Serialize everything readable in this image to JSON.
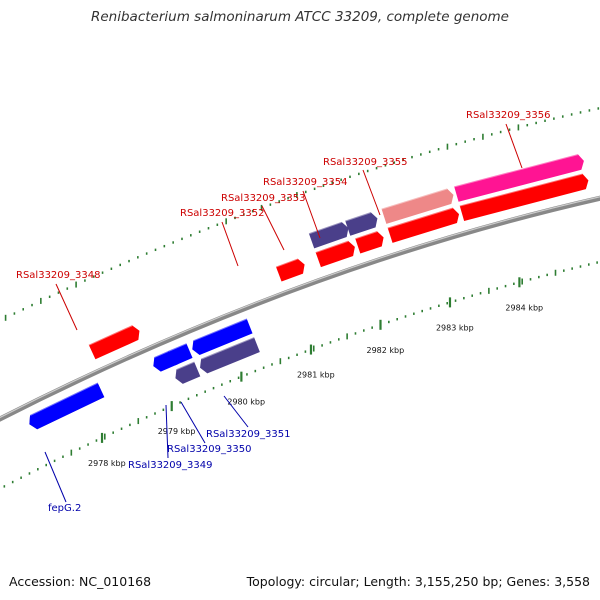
{
  "title": "Renibacterium salmoninarum ATCC 33209, complete genome",
  "accession": "Accession: NC_010168",
  "summary": "Topology: circular; Length: 3,155,250 bp; Genes: 3,558",
  "colors": {
    "forward_gene": "#ff0000",
    "forward_label": "#cc0000",
    "reverse_gene": "#0000ff",
    "reverse_label": "#0000aa",
    "operon_gene": "#4a3f8a",
    "pseudo_gene": "#ee8888",
    "rrna_gene": "#ff1493",
    "backbone": "#888888",
    "tick": "#2e7d32"
  },
  "scale": {
    "unit": "kbp",
    "ticks": [
      {
        "value": 2978,
        "label": "2978 kbp"
      },
      {
        "value": 2979,
        "label": "2979 kbp"
      },
      {
        "value": 2980,
        "label": "2980 kbp"
      },
      {
        "value": 2981,
        "label": "2981 kbp"
      },
      {
        "value": 2982,
        "label": "2982 kbp"
      },
      {
        "value": 2983,
        "label": "2983 kbp"
      },
      {
        "value": 2984,
        "label": "2984 kbp"
      }
    ]
  },
  "genes": [
    {
      "name": "fepG.2",
      "strand": "reverse",
      "kind": "operon",
      "start_kbp": 2977.3,
      "end_kbp": 2978.25
    },
    {
      "name": "fepG.2 (upper)",
      "strand": "reverse",
      "kind": "reverse",
      "start_kbp": 2977.3,
      "end_kbp": 2978.25
    },
    {
      "name": "RSal33209_3348",
      "strand": "forward",
      "kind": "forward",
      "start_kbp": 2978.35,
      "end_kbp": 2978.95
    },
    {
      "name": "RSal33209_3349",
      "strand": "reverse",
      "kind": "reverse",
      "start_kbp": 2979.05,
      "end_kbp": 2979.3
    },
    {
      "name": "RSal33209_3350",
      "strand": "reverse",
      "kind": "reverse",
      "start_kbp": 2979.25,
      "end_kbp": 2979.5
    },
    {
      "name": "RSal33209_3350 (lower)",
      "strand": "reverse",
      "kind": "operon",
      "start_kbp": 2979.25,
      "end_kbp": 2979.5
    },
    {
      "name": "RSal33209_3351",
      "strand": "reverse",
      "kind": "reverse",
      "start_kbp": 2979.6,
      "end_kbp": 2980.35
    },
    {
      "name": "RSal33209_3351 (lower)",
      "strand": "reverse",
      "kind": "operon",
      "start_kbp": 2979.6,
      "end_kbp": 2980.35
    },
    {
      "name": "RSal33209_3352",
      "strand": "forward",
      "kind": "forward",
      "start_kbp": 2980.95,
      "end_kbp": 2981.25
    },
    {
      "name": "RSal33209_3353",
      "strand": "forward",
      "kind": "forward",
      "start_kbp": 2981.5,
      "end_kbp": 2981.95
    },
    {
      "name": "RSal33209_3353 (upper)",
      "strand": "forward",
      "kind": "operon",
      "start_kbp": 2981.5,
      "end_kbp": 2981.95
    },
    {
      "name": "RSal33209_3354",
      "strand": "forward",
      "kind": "forward",
      "start_kbp": 2982.05,
      "end_kbp": 2982.35
    },
    {
      "name": "RSal33209_3354 (upper)",
      "strand": "forward",
      "kind": "operon",
      "start_kbp": 2982.0,
      "end_kbp": 2982.35
    },
    {
      "name": "RSal33209_3355",
      "strand": "forward",
      "kind": "forward",
      "start_kbp": 2982.5,
      "end_kbp": 2983.4
    },
    {
      "name": "RSal33209_3355 (upper)",
      "strand": "forward",
      "kind": "pseudo",
      "start_kbp": 2982.5,
      "end_kbp": 2983.4
    },
    {
      "name": "RSal33209_3356",
      "strand": "forward",
      "kind": "forward",
      "start_kbp": 2983.5,
      "end_kbp": 2985.2
    },
    {
      "name": "RSal33209_3356 (upper)",
      "strand": "forward",
      "kind": "rrna",
      "start_kbp": 2983.5,
      "end_kbp": 2985.2
    }
  ],
  "labels": [
    {
      "text": "fepG.2",
      "strand": "reverse"
    },
    {
      "text": "RSal33209_3348",
      "strand": "forward"
    },
    {
      "text": "RSal33209_3349",
      "strand": "reverse"
    },
    {
      "text": "RSal33209_3350",
      "strand": "reverse"
    },
    {
      "text": "RSal33209_3351",
      "strand": "reverse"
    },
    {
      "text": "RSal33209_3352",
      "strand": "forward"
    },
    {
      "text": "RSal33209_3353",
      "strand": "forward"
    },
    {
      "text": "RSal33209_3354",
      "strand": "forward"
    },
    {
      "text": "RSal33209_3355",
      "strand": "forward"
    },
    {
      "text": "RSal33209_3356",
      "strand": "forward"
    }
  ]
}
